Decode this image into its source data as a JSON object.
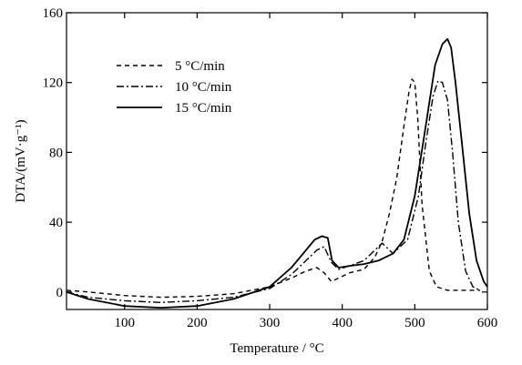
{
  "chart_data": {
    "type": "line",
    "title": "",
    "xlabel": "Temperature / °C",
    "ylabel": "DTA/(mV·g⁻¹)",
    "xlim": [
      20,
      600
    ],
    "ylim": [
      -10,
      160
    ],
    "xticks": [
      100,
      200,
      300,
      400,
      500,
      600
    ],
    "yticks": [
      0,
      40,
      80,
      120,
      160
    ],
    "grid": false,
    "legend_position": "top-left",
    "series": [
      {
        "name": "5 °C/min",
        "dash": "5,4",
        "stroke_width": 1.4,
        "x": [
          20,
          50,
          100,
          150,
          200,
          250,
          300,
          330,
          350,
          365,
          375,
          385,
          395,
          410,
          430,
          445,
          455,
          465,
          475,
          485,
          492,
          496,
          500,
          504,
          510,
          520,
          530,
          545,
          560,
          580,
          590
        ],
        "y": [
          1,
          0,
          -2,
          -3,
          -2.5,
          -1,
          3,
          8,
          12,
          14,
          11,
          6,
          8,
          11,
          13,
          20,
          29,
          45,
          65,
          95,
          115,
          122,
          120,
          100,
          50,
          12,
          3,
          1,
          1,
          1,
          1
        ]
      },
      {
        "name": "10 °C/min",
        "dash": "8,3,2,3",
        "stroke_width": 1.4,
        "x": [
          20,
          50,
          100,
          150,
          200,
          250,
          300,
          330,
          350,
          365,
          375,
          385,
          395,
          410,
          430,
          445,
          455,
          470,
          490,
          505,
          515,
          525,
          532,
          538,
          545,
          552,
          560,
          570,
          580,
          590
        ],
        "y": [
          0,
          -3,
          -5,
          -6,
          -5,
          -3,
          2,
          10,
          18,
          24,
          26,
          17,
          13,
          15,
          18,
          24,
          28,
          22,
          30,
          55,
          85,
          112,
          121,
          120,
          110,
          80,
          40,
          12,
          3,
          1
        ]
      },
      {
        "name": "15 °C/min",
        "dash": "",
        "stroke_width": 1.8,
        "x": [
          20,
          50,
          100,
          150,
          200,
          250,
          300,
          330,
          350,
          362,
          372,
          380,
          386,
          395,
          410,
          430,
          450,
          470,
          485,
          500,
          515,
          528,
          538,
          545,
          550,
          556,
          565,
          575,
          585,
          595,
          600
        ],
        "y": [
          0,
          -4,
          -8,
          -9,
          -8,
          -4,
          3,
          14,
          24,
          30,
          32,
          31,
          18,
          14,
          15,
          16,
          18,
          22,
          30,
          55,
          95,
          130,
          142,
          145,
          140,
          120,
          85,
          45,
          18,
          6,
          3
        ]
      }
    ]
  }
}
